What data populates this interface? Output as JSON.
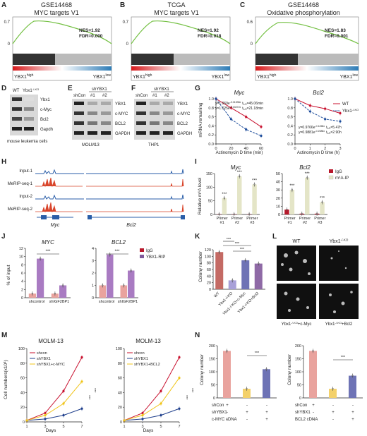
{
  "panels": {
    "A": {
      "letter": "A",
      "title1": "GSE14468",
      "title2": "MYC targets V1",
      "nes": "NES=1.92",
      "fdr": "FDR=0.000",
      "left": "YBX1",
      "left_sup": "high",
      "right": "YBX1",
      "right_sup": "low",
      "ytick_top": "0.7",
      "ytick_zero": "0"
    },
    "B": {
      "letter": "B",
      "title1": "TCGA",
      "title2": "MYC targets V1",
      "nes": "NES=1.92",
      "fdr": "FDR=0.018",
      "left": "YBX1",
      "left_sup": "high",
      "right": "YBX1",
      "right_sup": "low",
      "ytick_top": "0.7",
      "ytick_zero": "0"
    },
    "C": {
      "letter": "C",
      "title1": "GSE14468",
      "title2": "Oxidative phosphorylation",
      "nes": "NES=1.83",
      "fdr": "FDR=0.001",
      "left": "YBX1",
      "left_sup": "high",
      "right": "YBX1",
      "right_sup": "low",
      "ytick_top": "0.6",
      "ytick_zero": "0"
    },
    "D": {
      "letter": "D",
      "lanes": [
        "WT",
        "Ybx1"
      ],
      "lane2_sup": "-/-KO",
      "rows": [
        "Ybx1",
        "c-Myc",
        "Bcl2",
        "Gapdh"
      ],
      "caption": "mouse leukemia cells"
    },
    "E": {
      "letter": "E",
      "header": "shYBX1",
      "lanes": [
        "shCon",
        "#1",
        "#2"
      ],
      "rows": [
        "YBX1",
        "c-MYC",
        "BCL2",
        "GAPDH"
      ],
      "caption": "MOLM13"
    },
    "F": {
      "letter": "F",
      "header": "shYBX1",
      "lanes": [
        "shCon",
        "#1",
        "#2"
      ],
      "rows": [
        "YBX1",
        "c-MYC",
        "BCL2",
        "GAPDH"
      ],
      "caption": "THP1"
    },
    "G": {
      "letter": "G",
      "ylabel": "mRNA remaining",
      "myc": {
        "title": "Myc",
        "xlabel": "Actinomycin D time (min)",
        "xticks": [
          "0",
          "20",
          "40",
          "60"
        ],
        "yticks": [
          "1.0",
          "0.8",
          "0.6",
          "0.4",
          "0.2",
          "0.0"
        ],
        "eq_wt": "y=1.069e",
        "eq_wt_sup": "-0.01538x",
        "eq_wt_t": "t",
        "eq_wt_tsub": "1/2",
        "eq_wt_tval": "=45.06min",
        "eq_ko": "y=1.025e",
        "eq_ko_sup": "-0.03272x",
        "eq_ko_t": "t",
        "eq_ko_tsub": "1/2",
        "eq_ko_tval": "=21.18min"
      },
      "bcl2": {
        "title": "Bcl2",
        "xlabel": "Actinomycin D time (h)",
        "xticks": [
          "0",
          "1",
          "2",
          "3"
        ],
        "yticks": [
          "1.0",
          "0.8",
          "0.6",
          "0.4",
          "0.2",
          "0.0"
        ],
        "eq_wt": "y=0.9766e",
        "eq_wt_sup": "-0.1268x",
        "eq_wt_t": "t",
        "eq_wt_tsub": "1/2",
        "eq_wt_tval": "=5.47h",
        "eq_ko": "y=0.9881e",
        "eq_ko_sup": "-0.2388x",
        "eq_ko_t": "t",
        "eq_ko_tsub": "1/2",
        "eq_ko_tval": "=2.90h"
      },
      "legend": [
        {
          "name": "WT",
          "color": "#c8102e"
        },
        {
          "name": "Ybx1",
          "sup": "-/-KO",
          "color": "#1f4e9c"
        }
      ]
    },
    "H": {
      "letter": "H",
      "tracks": [
        "Input-1",
        "MeRIP-seq-1",
        "Input-2",
        "MeRIP-seq-2"
      ],
      "genes": [
        "Myc",
        "Bcl2"
      ]
    },
    "I": {
      "letter": "I",
      "ylabel": "Relative m⁶A level",
      "legend": [
        "IgG",
        "m⁶A-IP"
      ],
      "myc": {
        "title": "Myc",
        "yticks": [
          "0",
          "50",
          "100",
          "150"
        ],
        "cats": [
          "Primer #1",
          "Primer #2",
          "Primer #3"
        ]
      },
      "bcl2": {
        "title": "Bcl2",
        "yticks": [
          "0",
          "10",
          "20",
          "30",
          "40",
          "50"
        ],
        "cats": [
          "Primer #1",
          "Primer #2",
          "Primer #3"
        ]
      },
      "stars": "***"
    },
    "J": {
      "letter": "J",
      "ylabel": "% of input",
      "legend": [
        "IgG",
        "YBX1-RIP"
      ],
      "myc": {
        "title": "MYC",
        "yticks": [
          "0",
          "2",
          "4",
          "6",
          "8",
          "10",
          "12"
        ],
        "cats": [
          "shcontrol",
          "shIGF2BP1"
        ]
      },
      "bcl2": {
        "title": "BCL2",
        "yticks": [
          "0",
          "1",
          "2",
          "3",
          "4"
        ],
        "cats": [
          "shcontrol",
          "shIGF2BP1"
        ]
      },
      "stars": "***"
    },
    "K": {
      "letter": "K",
      "ylabel": "Colony number",
      "yticks": [
        "0",
        "20",
        "40",
        "60",
        "80",
        "100",
        "120"
      ],
      "cats": [
        "WT",
        "Ybx1",
        "Ybx1",
        "Ybx1"
      ],
      "cat_sup": "-/-KO",
      "cat_suffix": [
        "",
        "",
        "+c-Myc",
        "+Bcl2"
      ],
      "stars": "***"
    },
    "L": {
      "letter": "L",
      "label_wt": "WT",
      "label_ko": "Ybx1",
      "ko_sup": "-/-KO",
      "cap_myc": "+c-Myc",
      "cap_bcl2": "+Bcl2"
    },
    "M": {
      "letter": "M",
      "ylabel": "Cell numbers(x10",
      "ylabel_sup": "4",
      "ylabel_end": ")",
      "xlabel": "Days",
      "left": {
        "title": "MOLM-13",
        "legend": [
          "shcon",
          "shYBX1",
          "shYBX1+c-MYC"
        ],
        "xticks": [
          "1",
          "3",
          "5",
          "7"
        ],
        "yticks": [
          "0",
          "20",
          "40",
          "60",
          "80",
          "100"
        ]
      },
      "right": {
        "title": "MOLM-13",
        "legend": [
          "shcon",
          "shYBX1",
          "shYBX1+BCL2"
        ],
        "xticks": [
          "1",
          "3",
          "5",
          "7"
        ],
        "yticks": [
          "0",
          "20",
          "40",
          "60",
          "80",
          "100"
        ]
      },
      "stars": "***"
    },
    "N": {
      "letter": "N",
      "ylabel": "Colony number",
      "yticks": [
        "0",
        "50",
        "100",
        "150",
        "200"
      ],
      "rows": [
        "shCon",
        "shYBX1",
        "c-MYC cDNA"
      ],
      "rows2": [
        "shCon",
        "shYBX1",
        "BCL2 cDNA"
      ],
      "signs": [
        [
          "+",
          "-",
          "-"
        ],
        [
          "-",
          "+",
          "+"
        ],
        [
          "-",
          "-",
          "+"
        ]
      ],
      "stars": "***"
    }
  },
  "chart_data": [
    {
      "type": "line",
      "panel": "G-left",
      "title": "Myc",
      "xlabel": "Actinomycin D time (min)",
      "ylabel": "mRNA remaining",
      "x": [
        0,
        20,
        40,
        60
      ],
      "ylim": [
        0,
        1.0
      ],
      "series": [
        {
          "name": "WT",
          "values": [
            1.0,
            0.8,
            0.6,
            0.38
          ]
        },
        {
          "name": "Ybx1-/-KO",
          "values": [
            1.0,
            0.55,
            0.32,
            0.18
          ]
        }
      ]
    },
    {
      "type": "line",
      "panel": "G-right",
      "title": "Bcl2",
      "xlabel": "Actinomycin D time (h)",
      "ylabel": "mRNA remaining",
      "x": [
        0,
        1,
        2,
        3
      ],
      "ylim": [
        0,
        1.0
      ],
      "series": [
        {
          "name": "WT",
          "values": [
            1.0,
            0.85,
            0.78,
            0.68
          ]
        },
        {
          "name": "Ybx1-/-KO",
          "values": [
            1.0,
            0.72,
            0.55,
            0.5
          ]
        }
      ]
    },
    {
      "type": "bar",
      "panel": "I-left",
      "title": "Myc",
      "ylabel": "Relative m6A level",
      "categories": [
        "Primer #1",
        "Primer #2",
        "Primer #3"
      ],
      "ylim": [
        0,
        150
      ],
      "series": [
        {
          "name": "IgG",
          "values": [
            1,
            1,
            1
          ]
        },
        {
          "name": "m6A-IP",
          "values": [
            60,
            140,
            110
          ]
        }
      ]
    },
    {
      "type": "bar",
      "panel": "I-right",
      "title": "Bcl2",
      "categories": [
        "Primer #1",
        "Primer #2",
        "Primer #3"
      ],
      "ylim": [
        0,
        50
      ],
      "series": [
        {
          "name": "IgG",
          "values": [
            6,
            1,
            1
          ]
        },
        {
          "name": "m6A-IP",
          "values": [
            30,
            45,
            15
          ]
        }
      ]
    },
    {
      "type": "bar",
      "panel": "J-left",
      "title": "MYC",
      "ylabel": "% of input",
      "categories": [
        "shcontrol",
        "shIGF2BP1"
      ],
      "ylim": [
        0,
        12
      ],
      "series": [
        {
          "name": "IgG",
          "values": [
            1,
            1
          ]
        },
        {
          "name": "YBX1-RIP",
          "values": [
            9.5,
            3
          ]
        }
      ]
    },
    {
      "type": "bar",
      "panel": "J-right",
      "title": "BCL2",
      "categories": [
        "shcontrol",
        "shIGF2BP1"
      ],
      "ylim": [
        0,
        4
      ],
      "series": [
        {
          "name": "IgG",
          "values": [
            1,
            1
          ]
        },
        {
          "name": "YBX1-RIP",
          "values": [
            3.5,
            2.2
          ]
        }
      ]
    },
    {
      "type": "bar",
      "panel": "K",
      "ylabel": "Colony number",
      "categories": [
        "WT",
        "Ybx1-/-KO",
        "Ybx1-/-KO+c-Myc",
        "Ybx1-/-KO+Bcl2"
      ],
      "ylim": [
        0,
        120
      ],
      "values": [
        113,
        27,
        88,
        78
      ]
    },
    {
      "type": "line",
      "panel": "M-left",
      "title": "MOLM-13",
      "xlabel": "Days",
      "ylabel": "Cell numbers(x10^4)",
      "x": [
        1,
        3,
        5,
        7
      ],
      "ylim": [
        0,
        100
      ],
      "series": [
        {
          "name": "shcon",
          "values": [
            2,
            12,
            42,
            88
          ]
        },
        {
          "name": "shYBX1",
          "values": [
            2,
            4,
            9,
            18
          ]
        },
        {
          "name": "shYBX1+c-MYC",
          "values": [
            2,
            9,
            25,
            55
          ]
        }
      ]
    },
    {
      "type": "line",
      "panel": "M-right",
      "title": "MOLM-13",
      "xlabel": "Days",
      "ylabel": "Cell numbers(x10^4)",
      "x": [
        1,
        3,
        5,
        7
      ],
      "ylim": [
        0,
        100
      ],
      "series": [
        {
          "name": "shcon",
          "values": [
            2,
            12,
            42,
            88
          ]
        },
        {
          "name": "shYBX1",
          "values": [
            2,
            4,
            9,
            18
          ]
        },
        {
          "name": "shYBX1+BCL2",
          "values": [
            2,
            9,
            25,
            60
          ]
        }
      ]
    },
    {
      "type": "bar",
      "panel": "N-left",
      "ylabel": "Colony number",
      "categories": [
        "shCon",
        "shYBX1",
        "shYBX1+c-MYC cDNA"
      ],
      "ylim": [
        0,
        200
      ],
      "values": [
        180,
        35,
        110
      ]
    },
    {
      "type": "bar",
      "panel": "N-right",
      "ylabel": "Colony number",
      "categories": [
        "shCon",
        "shYBX1",
        "shYBX1+BCL2 cDNA"
      ],
      "ylim": [
        0,
        200
      ],
      "values": [
        180,
        35,
        85
      ]
    }
  ]
}
